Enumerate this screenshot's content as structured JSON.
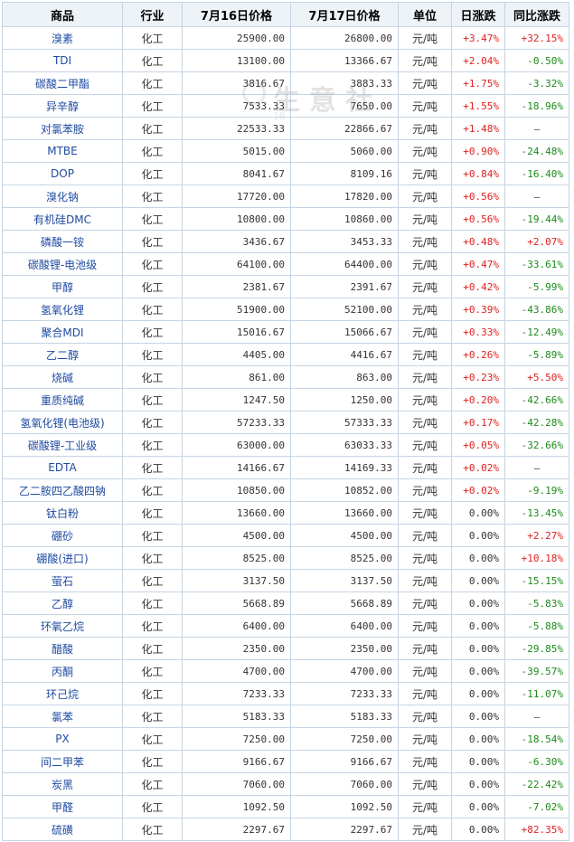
{
  "headers": {
    "commodity": "商品",
    "industry": "行业",
    "price_0716": "7月16日价格",
    "price_0717": "7月17日价格",
    "unit": "单位",
    "daily_change": "日涨跌",
    "yoy_change": "同比涨跌"
  },
  "watermark": {
    "text": "生意社",
    "url": "10"
  },
  "colors": {
    "up": "#e02020",
    "down": "#1a8a1a",
    "header_bg": "#eef3f8",
    "border": "#c6d4e3",
    "link": "#1f4ba1"
  },
  "rows": [
    {
      "name": "溴素",
      "industry": "化工",
      "p16": "25900.00",
      "p17": "26800.00",
      "unit": "元/吨",
      "chg": "+3.47%",
      "yoy": "+32.15%"
    },
    {
      "name": "TDI",
      "industry": "化工",
      "p16": "13100.00",
      "p17": "13366.67",
      "unit": "元/吨",
      "chg": "+2.04%",
      "yoy": "-0.50%"
    },
    {
      "name": "碳酸二甲酯",
      "industry": "化工",
      "p16": "3816.67",
      "p17": "3883.33",
      "unit": "元/吨",
      "chg": "+1.75%",
      "yoy": "-3.32%"
    },
    {
      "name": "异辛醇",
      "industry": "化工",
      "p16": "7533.33",
      "p17": "7650.00",
      "unit": "元/吨",
      "chg": "+1.55%",
      "yoy": "-18.96%"
    },
    {
      "name": "对氯苯胺",
      "industry": "化工",
      "p16": "22533.33",
      "p17": "22866.67",
      "unit": "元/吨",
      "chg": "+1.48%",
      "yoy": "—"
    },
    {
      "name": "MTBE",
      "industry": "化工",
      "p16": "5015.00",
      "p17": "5060.00",
      "unit": "元/吨",
      "chg": "+0.90%",
      "yoy": "-24.48%"
    },
    {
      "name": "DOP",
      "industry": "化工",
      "p16": "8041.67",
      "p17": "8109.16",
      "unit": "元/吨",
      "chg": "+0.84%",
      "yoy": "-16.40%"
    },
    {
      "name": "溴化钠",
      "industry": "化工",
      "p16": "17720.00",
      "p17": "17820.00",
      "unit": "元/吨",
      "chg": "+0.56%",
      "yoy": "—"
    },
    {
      "name": "有机硅DMC",
      "industry": "化工",
      "p16": "10800.00",
      "p17": "10860.00",
      "unit": "元/吨",
      "chg": "+0.56%",
      "yoy": "-19.44%"
    },
    {
      "name": "磷酸一铵",
      "industry": "化工",
      "p16": "3436.67",
      "p17": "3453.33",
      "unit": "元/吨",
      "chg": "+0.48%",
      "yoy": "+2.07%"
    },
    {
      "name": "碳酸锂-电池级",
      "industry": "化工",
      "p16": "64100.00",
      "p17": "64400.00",
      "unit": "元/吨",
      "chg": "+0.47%",
      "yoy": "-33.61%"
    },
    {
      "name": "甲醇",
      "industry": "化工",
      "p16": "2381.67",
      "p17": "2391.67",
      "unit": "元/吨",
      "chg": "+0.42%",
      "yoy": "-5.99%"
    },
    {
      "name": "氢氧化锂",
      "industry": "化工",
      "p16": "51900.00",
      "p17": "52100.00",
      "unit": "元/吨",
      "chg": "+0.39%",
      "yoy": "-43.86%"
    },
    {
      "name": "聚合MDI",
      "industry": "化工",
      "p16": "15016.67",
      "p17": "15066.67",
      "unit": "元/吨",
      "chg": "+0.33%",
      "yoy": "-12.49%"
    },
    {
      "name": "乙二醇",
      "industry": "化工",
      "p16": "4405.00",
      "p17": "4416.67",
      "unit": "元/吨",
      "chg": "+0.26%",
      "yoy": "-5.89%"
    },
    {
      "name": "烧碱",
      "industry": "化工",
      "p16": "861.00",
      "p17": "863.00",
      "unit": "元/吨",
      "chg": "+0.23%",
      "yoy": "+5.50%"
    },
    {
      "name": "重质纯碱",
      "industry": "化工",
      "p16": "1247.50",
      "p17": "1250.00",
      "unit": "元/吨",
      "chg": "+0.20%",
      "yoy": "-42.66%"
    },
    {
      "name": "氢氧化锂(电池级)",
      "industry": "化工",
      "p16": "57233.33",
      "p17": "57333.33",
      "unit": "元/吨",
      "chg": "+0.17%",
      "yoy": "-42.28%"
    },
    {
      "name": "碳酸锂-工业级",
      "industry": "化工",
      "p16": "63000.00",
      "p17": "63033.33",
      "unit": "元/吨",
      "chg": "+0.05%",
      "yoy": "-32.66%"
    },
    {
      "name": "EDTA",
      "industry": "化工",
      "p16": "14166.67",
      "p17": "14169.33",
      "unit": "元/吨",
      "chg": "+0.02%",
      "yoy": "—"
    },
    {
      "name": "乙二胺四乙酸四钠",
      "industry": "化工",
      "p16": "10850.00",
      "p17": "10852.00",
      "unit": "元/吨",
      "chg": "+0.02%",
      "yoy": "-9.19%"
    },
    {
      "name": "钛白粉",
      "industry": "化工",
      "p16": "13660.00",
      "p17": "13660.00",
      "unit": "元/吨",
      "chg": "0.00%",
      "yoy": "-13.45%"
    },
    {
      "name": "硼砂",
      "industry": "化工",
      "p16": "4500.00",
      "p17": "4500.00",
      "unit": "元/吨",
      "chg": "0.00%",
      "yoy": "+2.27%"
    },
    {
      "name": "硼酸(进口)",
      "industry": "化工",
      "p16": "8525.00",
      "p17": "8525.00",
      "unit": "元/吨",
      "chg": "0.00%",
      "yoy": "+10.18%"
    },
    {
      "name": "萤石",
      "industry": "化工",
      "p16": "3137.50",
      "p17": "3137.50",
      "unit": "元/吨",
      "chg": "0.00%",
      "yoy": "-15.15%"
    },
    {
      "name": "乙醇",
      "industry": "化工",
      "p16": "5668.89",
      "p17": "5668.89",
      "unit": "元/吨",
      "chg": "0.00%",
      "yoy": "-5.83%"
    },
    {
      "name": "环氧乙烷",
      "industry": "化工",
      "p16": "6400.00",
      "p17": "6400.00",
      "unit": "元/吨",
      "chg": "0.00%",
      "yoy": "-5.88%"
    },
    {
      "name": "醋酸",
      "industry": "化工",
      "p16": "2350.00",
      "p17": "2350.00",
      "unit": "元/吨",
      "chg": "0.00%",
      "yoy": "-29.85%"
    },
    {
      "name": "丙酮",
      "industry": "化工",
      "p16": "4700.00",
      "p17": "4700.00",
      "unit": "元/吨",
      "chg": "0.00%",
      "yoy": "-39.57%"
    },
    {
      "name": "环己烷",
      "industry": "化工",
      "p16": "7233.33",
      "p17": "7233.33",
      "unit": "元/吨",
      "chg": "0.00%",
      "yoy": "-11.07%"
    },
    {
      "name": "氯苯",
      "industry": "化工",
      "p16": "5183.33",
      "p17": "5183.33",
      "unit": "元/吨",
      "chg": "0.00%",
      "yoy": "—"
    },
    {
      "name": "PX",
      "industry": "化工",
      "p16": "7250.00",
      "p17": "7250.00",
      "unit": "元/吨",
      "chg": "0.00%",
      "yoy": "-18.54%"
    },
    {
      "name": "间二甲苯",
      "industry": "化工",
      "p16": "9166.67",
      "p17": "9166.67",
      "unit": "元/吨",
      "chg": "0.00%",
      "yoy": "-6.30%"
    },
    {
      "name": "炭黑",
      "industry": "化工",
      "p16": "7060.00",
      "p17": "7060.00",
      "unit": "元/吨",
      "chg": "0.00%",
      "yoy": "-22.42%"
    },
    {
      "name": "甲醛",
      "industry": "化工",
      "p16": "1092.50",
      "p17": "1092.50",
      "unit": "元/吨",
      "chg": "0.00%",
      "yoy": "-7.02%"
    },
    {
      "name": "硫磺",
      "industry": "化工",
      "p16": "2297.67",
      "p17": "2297.67",
      "unit": "元/吨",
      "chg": "0.00%",
      "yoy": "+82.35%"
    }
  ]
}
